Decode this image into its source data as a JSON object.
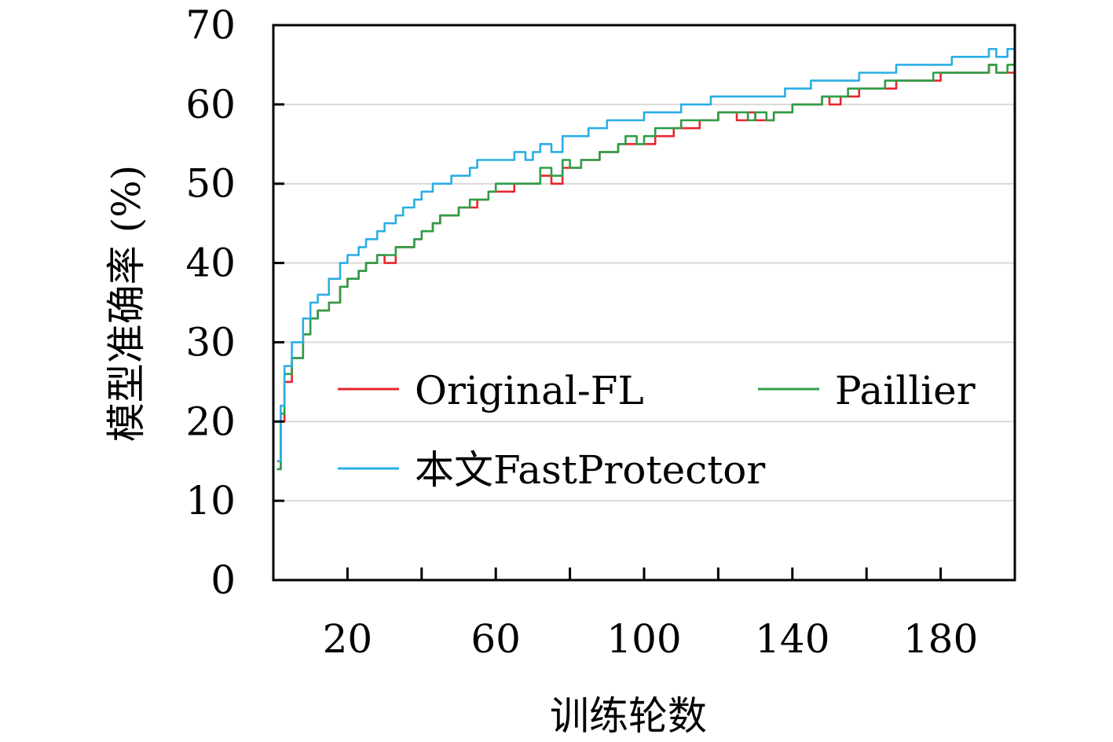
{
  "chart_data": {
    "type": "line",
    "title": "",
    "xlabel": "训练轮数",
    "ylabel": "模型准确率 (%)",
    "xlim": [
      0,
      200
    ],
    "ylim": [
      0,
      70
    ],
    "xticks": [
      20,
      60,
      100,
      140,
      180
    ],
    "yticks": [
      0,
      10,
      20,
      30,
      40,
      50,
      60,
      70
    ],
    "grid": "horizontal",
    "legend_position": "lower-right inside",
    "x": [
      1,
      2,
      3,
      5,
      8,
      10,
      12,
      15,
      18,
      20,
      23,
      25,
      28,
      30,
      33,
      35,
      38,
      40,
      43,
      45,
      48,
      50,
      53,
      55,
      58,
      60,
      63,
      65,
      68,
      70,
      72,
      75,
      78,
      80,
      83,
      85,
      88,
      90,
      93,
      95,
      98,
      100,
      103,
      105,
      108,
      110,
      113,
      115,
      118,
      120,
      123,
      125,
      128,
      130,
      133,
      135,
      138,
      140,
      143,
      145,
      148,
      150,
      153,
      155,
      158,
      160,
      163,
      165,
      168,
      170,
      173,
      175,
      178,
      180,
      183,
      185,
      188,
      190,
      193,
      195,
      198,
      200
    ],
    "series": [
      {
        "name": "Original-FL",
        "color": "#e8262b",
        "values": [
          14,
          20,
          25,
          28,
          31,
          33,
          34,
          35,
          37,
          38,
          39,
          40,
          41,
          40,
          42,
          42,
          43,
          44,
          45,
          46,
          46,
          47,
          47,
          48,
          49,
          49,
          49,
          50,
          50,
          50,
          51,
          50,
          52,
          52,
          53,
          53,
          54,
          54,
          55,
          55,
          55,
          55,
          56,
          56,
          57,
          57,
          57,
          58,
          58,
          59,
          59,
          58,
          59,
          58,
          58,
          59,
          59,
          60,
          60,
          60,
          61,
          60,
          61,
          61,
          62,
          62,
          62,
          62,
          63,
          63,
          63,
          63,
          63,
          64,
          64,
          64,
          64,
          64,
          65,
          64,
          64,
          64
        ]
      },
      {
        "name": "Paillier",
        "color": "#2e9e48",
        "values": [
          14,
          21,
          26,
          28,
          31,
          33,
          34,
          35,
          37,
          38,
          39,
          40,
          41,
          41,
          42,
          42,
          43,
          44,
          45,
          46,
          46,
          47,
          48,
          48,
          49,
          50,
          50,
          50,
          50,
          50,
          52,
          51,
          53,
          52,
          53,
          53,
          54,
          54,
          55,
          56,
          55,
          56,
          57,
          57,
          57,
          58,
          58,
          58,
          58,
          59,
          59,
          59,
          58,
          59,
          58,
          59,
          59,
          60,
          60,
          60,
          61,
          61,
          61,
          62,
          62,
          62,
          62,
          63,
          63,
          63,
          63,
          63,
          64,
          64,
          64,
          64,
          64,
          64,
          65,
          64,
          65,
          65
        ]
      },
      {
        "name": "本文FastProtector",
        "color": "#2aaee4",
        "values": [
          15,
          22,
          27,
          30,
          33,
          35,
          36,
          38,
          40,
          41,
          42,
          43,
          44,
          45,
          46,
          47,
          48,
          49,
          50,
          50,
          51,
          51,
          52,
          53,
          53,
          53,
          53,
          54,
          53,
          54,
          55,
          54,
          56,
          56,
          56,
          57,
          57,
          58,
          58,
          58,
          58,
          59,
          59,
          59,
          59,
          60,
          60,
          60,
          61,
          61,
          61,
          61,
          61,
          61,
          61,
          61,
          62,
          62,
          62,
          63,
          63,
          63,
          63,
          63,
          64,
          64,
          64,
          64,
          65,
          65,
          65,
          65,
          65,
          65,
          66,
          66,
          66,
          66,
          67,
          66,
          67,
          67
        ]
      }
    ]
  }
}
